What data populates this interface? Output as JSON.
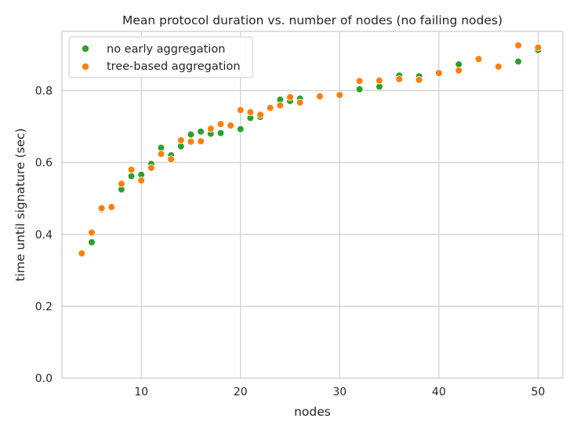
{
  "chart_data": {
    "type": "scatter",
    "title": "Mean protocol duration vs. number of nodes (no failing nodes)",
    "xlabel": "nodes",
    "ylabel": "time until signature (sec)",
    "xlim": [
      2,
      52.5
    ],
    "ylim": [
      0,
      0.965
    ],
    "xticks": [
      10,
      20,
      30,
      40,
      50
    ],
    "yticks": [
      0.0,
      0.2,
      0.4,
      0.6,
      0.8
    ],
    "xtick_labels": [
      "10",
      "20",
      "30",
      "40",
      "50"
    ],
    "ytick_labels": [
      "0.0",
      "0.2",
      "0.4",
      "0.6",
      "0.8"
    ],
    "grid": true,
    "legend_position": "top-left",
    "series": [
      {
        "name": "no early aggregation",
        "color": "#2ca02c",
        "x": [
          5,
          6,
          7,
          8,
          9,
          10,
          11,
          12,
          13,
          14,
          15,
          16,
          17,
          18,
          20,
          21,
          22,
          24,
          25,
          26,
          28,
          32,
          34,
          36,
          38,
          40,
          42,
          48,
          50
        ],
        "y": [
          0.378,
          0.47,
          0.475,
          0.525,
          0.562,
          0.566,
          0.596,
          0.641,
          0.62,
          0.645,
          0.678,
          0.686,
          0.68,
          0.682,
          0.693,
          0.724,
          0.727,
          0.775,
          0.771,
          0.778,
          0.786,
          0.804,
          0.811,
          0.842,
          0.84,
          0.851,
          0.873,
          0.881,
          0.913
        ]
      },
      {
        "name": "tree-based aggregation",
        "color": "#ff7f0e",
        "x": [
          4,
          5,
          6,
          7,
          8,
          9,
          10,
          11,
          12,
          13,
          14,
          15,
          16,
          17,
          18,
          19,
          20,
          21,
          22,
          23,
          24,
          25,
          26,
          28,
          30,
          32,
          34,
          36,
          38,
          40,
          42,
          44,
          46,
          48,
          50
        ],
        "y": [
          0.347,
          0.405,
          0.473,
          0.476,
          0.541,
          0.58,
          0.55,
          0.585,
          0.624,
          0.609,
          0.662,
          0.658,
          0.659,
          0.694,
          0.707,
          0.703,
          0.746,
          0.74,
          0.733,
          0.752,
          0.759,
          0.782,
          0.767,
          0.784,
          0.788,
          0.827,
          0.828,
          0.832,
          0.83,
          0.849,
          0.856,
          0.888,
          0.867,
          0.926,
          0.92
        ]
      }
    ]
  }
}
